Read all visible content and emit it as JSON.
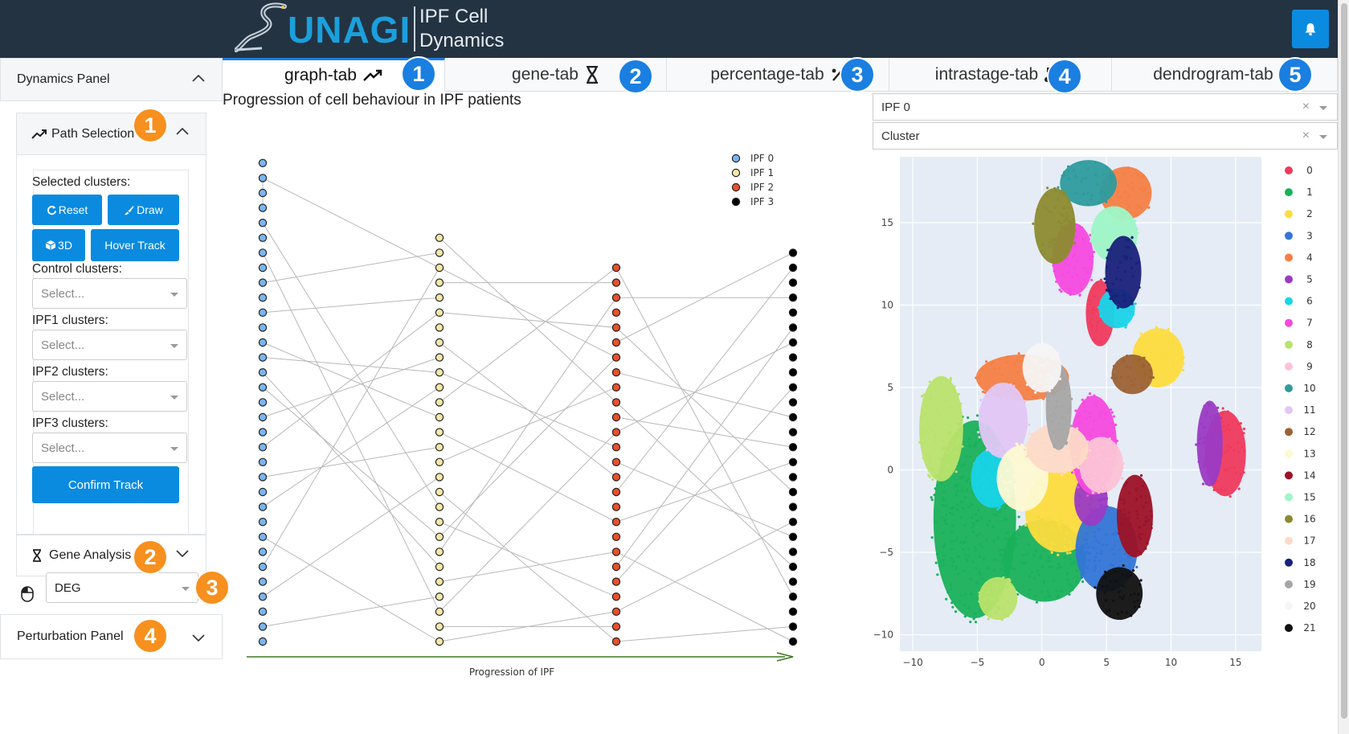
{
  "header": {
    "brand": "UNAGI",
    "subtitle_line1": "IPF Cell",
    "subtitle_line2": "Dynamics"
  },
  "icons": {
    "notify": "bell-icon",
    "path": "trend-up-icon",
    "gene": "dna-icon",
    "percentage": "percent-icon",
    "intrastage": "network-icon",
    "dendrogram": "tree-icon",
    "mouse": "mouse-icon"
  },
  "sidebar": {
    "dynamics_panel": "Dynamics Panel",
    "path_selection": "Path Selection",
    "selected_clusters_label": "Selected clusters:",
    "reset_label": "Reset",
    "draw_label": "Draw",
    "threed_label": "3D",
    "hover_track_label": "Hover Track",
    "control_label": "Control clusters:",
    "ipf1_label": "IPF1 clusters:",
    "ipf2_label": "IPF2 clusters:",
    "ipf3_label": "IPF3 clusters:",
    "select_placeholder": "Select...",
    "confirm_label": "Confirm Track",
    "gene_analysis": "Gene Analysis",
    "deg_value": "DEG",
    "perturbation_panel": "Perturbation Panel",
    "badges": [
      "1",
      "2",
      "3",
      "4"
    ]
  },
  "tabs": [
    {
      "label": "graph-tab",
      "badge": "1"
    },
    {
      "label": "gene-tab",
      "badge": "2"
    },
    {
      "label": "percentage-tab",
      "badge": "3"
    },
    {
      "label": "intrastage-tab",
      "badge": "4"
    },
    {
      "label": "dendrogram-tab",
      "badge": "5"
    }
  ],
  "graph": {
    "title": "Progression of cell behaviour in IPF patients",
    "xlabel": "Progression of IPF"
  },
  "umap": {
    "stage_value": "IPF 0",
    "color_by_value": "Cluster",
    "clear_symbol": "×"
  },
  "chart_data": [
    {
      "type": "network",
      "title": "Progression of cell behaviour in IPF patients",
      "xlabel": "Progression of IPF",
      "legend_position": "top-right",
      "stages": [
        {
          "name": "IPF 0",
          "color": "#7ab5ef",
          "nodes": 33
        },
        {
          "name": "IPF 1",
          "color": "#f5e7a9",
          "nodes": 28
        },
        {
          "name": "IPF 2",
          "color": "#e8502c",
          "nodes": 26
        },
        {
          "name": "IPF 3",
          "color": "#000000",
          "nodes": 27
        }
      ],
      "edges": [
        [
          0,
          1,
          2,
          6
        ],
        [
          0,
          1,
          0,
          3
        ],
        [
          0,
          4,
          1,
          18
        ],
        [
          0,
          8,
          1,
          1
        ],
        [
          0,
          10,
          1,
          4
        ],
        [
          0,
          12,
          1,
          12
        ],
        [
          0,
          13,
          1,
          9
        ],
        [
          0,
          15,
          1,
          20
        ],
        [
          0,
          17,
          1,
          8
        ],
        [
          0,
          19,
          1,
          5
        ],
        [
          0,
          21,
          1,
          14
        ],
        [
          0,
          23,
          1,
          10
        ],
        [
          0,
          25,
          1,
          27
        ],
        [
          0,
          27,
          1,
          2
        ],
        [
          0,
          29,
          1,
          16
        ],
        [
          0,
          31,
          1,
          24
        ],
        [
          0,
          14,
          1,
          22
        ],
        [
          0,
          6,
          1,
          25
        ],
        [
          1,
          0,
          2,
          9
        ],
        [
          1,
          3,
          2,
          1
        ],
        [
          1,
          5,
          2,
          4
        ],
        [
          1,
          7,
          2,
          14
        ],
        [
          1,
          9,
          2,
          12
        ],
        [
          1,
          11,
          2,
          0
        ],
        [
          1,
          13,
          2,
          17
        ],
        [
          1,
          15,
          2,
          8
        ],
        [
          1,
          17,
          2,
          25
        ],
        [
          1,
          19,
          2,
          22
        ],
        [
          1,
          21,
          2,
          2
        ],
        [
          1,
          23,
          2,
          19
        ],
        [
          1,
          25,
          2,
          11
        ],
        [
          1,
          27,
          2,
          23
        ],
        [
          1,
          20,
          2,
          6
        ],
        [
          1,
          26,
          2,
          24
        ],
        [
          2,
          0,
          3,
          23
        ],
        [
          2,
          2,
          3,
          3
        ],
        [
          2,
          4,
          3,
          16
        ],
        [
          2,
          5,
          3,
          0
        ],
        [
          2,
          7,
          3,
          11
        ],
        [
          2,
          9,
          3,
          21
        ],
        [
          2,
          11,
          3,
          6
        ],
        [
          2,
          13,
          3,
          19
        ],
        [
          2,
          15,
          3,
          1
        ],
        [
          2,
          17,
          3,
          14
        ],
        [
          2,
          19,
          3,
          26
        ],
        [
          2,
          21,
          3,
          9
        ],
        [
          2,
          23,
          3,
          18
        ],
        [
          2,
          25,
          3,
          25
        ],
        [
          2,
          10,
          3,
          13
        ],
        [
          2,
          20,
          3,
          5
        ]
      ]
    },
    {
      "type": "scatter",
      "title": "",
      "xlim": [
        -11,
        17
      ],
      "ylim": [
        -11,
        19
      ],
      "xticks": [
        -10,
        -5,
        0,
        5,
        10,
        15
      ],
      "yticks": [
        -10,
        -5,
        0,
        5,
        10,
        15
      ],
      "grid": true,
      "legend_position": "right",
      "clusters": [
        {
          "name": "0",
          "color": "#ef3a5d",
          "regions": [
            [
              4.5,
              9.5,
              1.1,
              2.0
            ],
            [
              14.2,
              1.0,
              1.6,
              2.6
            ]
          ]
        },
        {
          "name": "1",
          "color": "#19b15a",
          "regions": [
            [
              -5.2,
              -3.0,
              3.2,
              6.0
            ],
            [
              0.2,
              -5.5,
              3.2,
              2.5
            ]
          ]
        },
        {
          "name": "2",
          "color": "#fddc3e",
          "regions": [
            [
              1.5,
              -2.5,
              2.8,
              2.5
            ],
            [
              9.0,
              6.8,
              2.0,
              1.8
            ]
          ]
        },
        {
          "name": "3",
          "color": "#3375d5",
          "regions": [
            [
              5.0,
              -4.8,
              2.4,
              2.6
            ]
          ]
        },
        {
          "name": "4",
          "color": "#f57f44",
          "regions": [
            [
              6.5,
              16.8,
              2.0,
              1.6
            ],
            [
              -1.5,
              5.6,
              3.6,
              1.4
            ]
          ]
        },
        {
          "name": "5",
          "color": "#9b3bc4",
          "regions": [
            [
              13.0,
              1.6,
              1.0,
              2.6
            ],
            [
              3.8,
              -1.8,
              1.3,
              1.6
            ]
          ]
        },
        {
          "name": "6",
          "color": "#19d4e8",
          "regions": [
            [
              -3.8,
              -0.5,
              1.7,
              1.8
            ],
            [
              5.8,
              9.8,
              1.4,
              1.2
            ]
          ]
        },
        {
          "name": "7",
          "color": "#f54adf",
          "regions": [
            [
              2.4,
              12.8,
              1.6,
              2.2
            ],
            [
              4.0,
              1.5,
              1.8,
              3.0
            ]
          ]
        },
        {
          "name": "8",
          "color": "#b9e36b",
          "regions": [
            [
              -7.8,
              2.5,
              1.7,
              3.2
            ],
            [
              -3.4,
              -7.8,
              1.5,
              1.3
            ]
          ]
        },
        {
          "name": "9",
          "color": "#fcc3d6",
          "regions": [
            [
              4.6,
              0.3,
              1.7,
              1.7
            ]
          ]
        },
        {
          "name": "10",
          "color": "#2e9b9d",
          "regions": [
            [
              3.6,
              17.4,
              2.2,
              1.4
            ]
          ]
        },
        {
          "name": "11",
          "color": "#e2c7f4",
          "regions": [
            [
              -3.0,
              3.0,
              1.9,
              2.3
            ]
          ]
        },
        {
          "name": "12",
          "color": "#9c6235",
          "regions": [
            [
              7.0,
              5.8,
              1.6,
              1.2
            ]
          ]
        },
        {
          "name": "13",
          "color": "#fdf9d2",
          "regions": [
            [
              -1.5,
              -0.5,
              2.0,
              2.0
            ]
          ]
        },
        {
          "name": "14",
          "color": "#9c1227",
          "regions": [
            [
              7.2,
              -2.8,
              1.4,
              2.5
            ]
          ]
        },
        {
          "name": "15",
          "color": "#9ef6c6",
          "regions": [
            [
              5.6,
              14.3,
              1.8,
              1.7
            ]
          ]
        },
        {
          "name": "16",
          "color": "#8c8b30",
          "regions": [
            [
              1.0,
              14.8,
              1.6,
              2.3
            ]
          ]
        },
        {
          "name": "17",
          "color": "#fddac7",
          "regions": [
            [
              1.2,
              1.3,
              2.4,
              1.5
            ]
          ]
        },
        {
          "name": "18",
          "color": "#19217a",
          "regions": [
            [
              6.3,
              12.0,
              1.4,
              2.2
            ]
          ]
        },
        {
          "name": "19",
          "color": "#a6a6a6",
          "regions": [
            [
              1.3,
              3.8,
              1.0,
              2.6
            ]
          ]
        },
        {
          "name": "20",
          "color": "#f5f5f5",
          "regions": [
            [
              0.0,
              6.2,
              1.5,
              1.5
            ]
          ]
        },
        {
          "name": "21",
          "color": "#111111",
          "regions": [
            [
              6.0,
              -7.5,
              1.8,
              1.6
            ]
          ]
        }
      ]
    }
  ]
}
